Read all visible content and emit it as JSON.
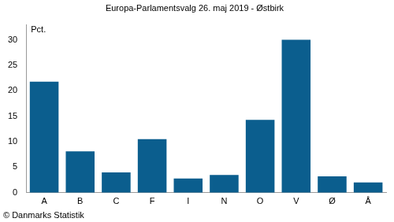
{
  "chart_data": {
    "type": "bar",
    "title": "Europa-Parlamentsvalg 26. maj 2019 - Østbirk",
    "y_label": "Pct.",
    "source": "© Danmarks Statistik",
    "categories": [
      "A",
      "B",
      "C",
      "F",
      "I",
      "N",
      "O",
      "V",
      "Ø",
      "Å"
    ],
    "values": [
      21.8,
      8.1,
      4.0,
      10.5,
      2.8,
      3.5,
      14.3,
      30.0,
      3.2,
      2.0
    ],
    "color": "#0b5e8e",
    "ylim": [
      0,
      33
    ],
    "yticks": [
      0,
      5,
      10,
      15,
      20,
      25,
      30
    ],
    "grid": false
  }
}
